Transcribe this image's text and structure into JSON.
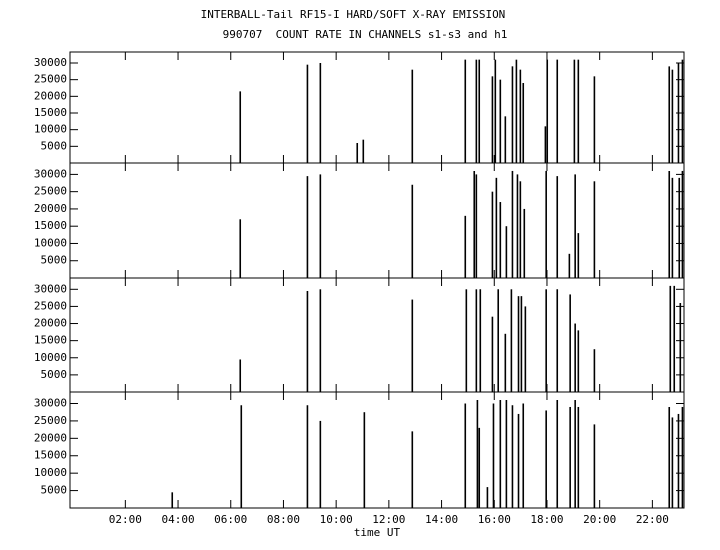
{
  "chart_data": [
    {
      "type": "impulse",
      "title": "INTERBALL-Tail RF15-I HARD/SOFT X-RAY EMISSION",
      "subtitle": "990707  COUNT RATE IN CHANNELS s1-s3 and h1",
      "color": "#000000",
      "x": [
        6.36,
        8.91,
        9.4,
        10.8,
        11.03,
        12.89,
        14.9,
        15.32,
        15.43,
        15.93,
        16.04,
        16.23,
        16.42,
        16.69,
        16.84,
        16.99,
        17.1,
        17.94,
        18.01,
        18.39,
        19.04,
        19.19,
        19.8,
        22.64,
        22.76,
        22.99,
        23.14
      ],
      "values": [
        21500,
        29500,
        30000,
        6000,
        7000,
        28000,
        31000,
        31000,
        31000,
        26000,
        31000,
        25000,
        14000,
        29000,
        31000,
        28000,
        24000,
        11000,
        31000,
        31000,
        31000,
        31000,
        26000,
        29000,
        28000,
        30000,
        31000
      ],
      "xlim": [
        -0.1,
        23.2
      ],
      "ylim": [
        0,
        33300
      ],
      "yticks": [
        5000,
        10000,
        15000,
        20000,
        25000,
        30000
      ]
    },
    {
      "type": "impulse",
      "color": "#000000",
      "x": [
        6.36,
        8.91,
        9.4,
        12.89,
        14.9,
        15.24,
        15.32,
        15.93,
        16.08,
        16.23,
        16.46,
        16.69,
        16.88,
        16.99,
        17.14,
        17.97,
        18.39,
        18.85,
        19.07,
        19.19,
        19.8,
        22.64,
        22.76,
        23.02,
        23.14
      ],
      "values": [
        17000,
        29500,
        30000,
        27000,
        18000,
        31000,
        30000,
        25000,
        29000,
        22000,
        15000,
        31000,
        30000,
        28000,
        20000,
        31000,
        29500,
        7000,
        30000,
        13000,
        28000,
        31000,
        29000,
        29000,
        31000
      ],
      "xlim": [
        -0.1,
        23.2
      ],
      "ylim": [
        0,
        33300
      ],
      "yticks": [
        5000,
        10000,
        15000,
        20000,
        25000,
        30000
      ]
    },
    {
      "type": "impulse",
      "color": "#000000",
      "x": [
        6.36,
        8.91,
        9.4,
        12.89,
        14.94,
        15.32,
        15.47,
        15.93,
        16.15,
        16.42,
        16.65,
        16.92,
        17.03,
        17.18,
        17.97,
        18.39,
        18.88,
        19.07,
        19.19,
        19.8,
        22.68,
        22.83,
        23.06
      ],
      "values": [
        9500,
        29500,
        30000,
        27000,
        30000,
        30000,
        30000,
        22000,
        30000,
        17000,
        30000,
        28000,
        28000,
        25000,
        30000,
        30000,
        28500,
        20000,
        18000,
        12500,
        31000,
        31000,
        26000
      ],
      "xlim": [
        -0.1,
        23.2
      ],
      "ylim": [
        0,
        33300
      ],
      "yticks": [
        5000,
        10000,
        15000,
        20000,
        25000,
        30000
      ]
    },
    {
      "type": "impulse",
      "xlabel": "time UT",
      "color": "#000000",
      "x": [
        3.78,
        6.4,
        8.91,
        9.4,
        11.07,
        12.89,
        14.9,
        15.36,
        15.43,
        15.74,
        15.97,
        16.23,
        16.46,
        16.69,
        16.92,
        17.1,
        17.97,
        18.39,
        18.88,
        19.07,
        19.19,
        19.8,
        22.64,
        22.76,
        22.99,
        23.14
      ],
      "values": [
        4500,
        29500,
        29500,
        25000,
        27500,
        22000,
        30000,
        31000,
        23000,
        6000,
        30000,
        31000,
        31000,
        29500,
        27000,
        30000,
        28000,
        31000,
        29000,
        31000,
        29000,
        24000,
        29000,
        26000,
        27000,
        29000
      ],
      "xlim": [
        -0.1,
        23.2
      ],
      "ylim": [
        0,
        33300
      ],
      "yticks": [
        5000,
        10000,
        15000,
        20000,
        25000,
        30000
      ],
      "xticks": [
        {
          "value": 2,
          "label": "02:00"
        },
        {
          "value": 4,
          "label": "04:00"
        },
        {
          "value": 6,
          "label": "06:00"
        },
        {
          "value": 8,
          "label": "08:00"
        },
        {
          "value": 10,
          "label": "10:00"
        },
        {
          "value": 12,
          "label": "12:00"
        },
        {
          "value": 14,
          "label": "14:00"
        },
        {
          "value": 16,
          "label": "16:00"
        },
        {
          "value": 18,
          "label": "18:00"
        },
        {
          "value": 20,
          "label": "20:00"
        },
        {
          "value": 22,
          "label": "22:00"
        }
      ]
    }
  ]
}
